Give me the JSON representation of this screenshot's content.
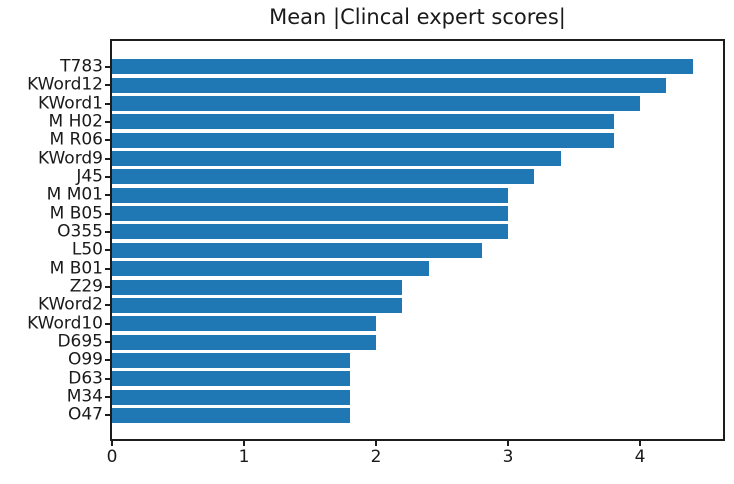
{
  "chart_data": {
    "type": "bar",
    "orientation": "horizontal",
    "title": "Mean |Clincal expert scores|",
    "categories": [
      "T783",
      "KWord12",
      "KWord1",
      "M H02",
      "M R06",
      "KWord9",
      "J45",
      "M M01",
      "M B05",
      "O355",
      "L50",
      "M B01",
      "Z29",
      "KWord2",
      "KWord10",
      "D695",
      "O99",
      "D63",
      "M34",
      "O47"
    ],
    "values": [
      4.4,
      4.2,
      4.0,
      3.8,
      3.8,
      3.4,
      3.2,
      3.0,
      3.0,
      3.0,
      2.8,
      2.4,
      2.2,
      2.2,
      2.0,
      2.0,
      1.8,
      1.8,
      1.8,
      1.8
    ],
    "xlabel": "",
    "ylabel": "",
    "xticks": [
      "0",
      "1",
      "2",
      "3",
      "4"
    ],
    "xtick_values": [
      0,
      1,
      2,
      3,
      4
    ],
    "xlim": [
      0,
      4.63
    ],
    "grid": false,
    "legend": null,
    "bar_color": "#1f77b4"
  },
  "colors": {
    "bar": "#1f77b4",
    "spine": "#1c1c1c",
    "text": "#1a1a1a",
    "background": "#ffffff"
  }
}
